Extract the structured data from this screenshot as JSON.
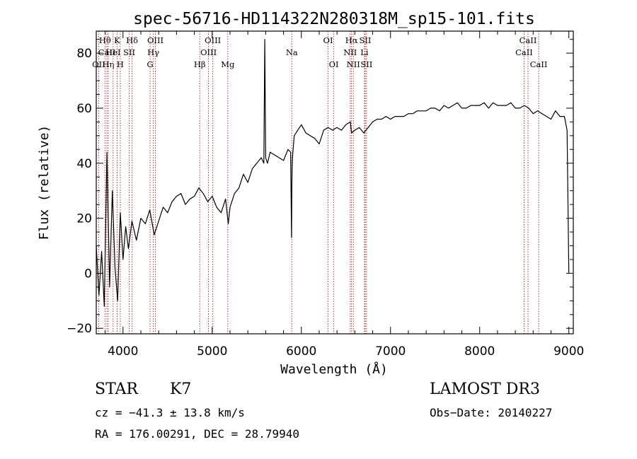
{
  "chart_data": {
    "type": "line",
    "title": "spec-56716-HD114322N280318M_sp15-101.fits",
    "xlabel": "Wavelength (Å)",
    "ylabel": "Flux (relative)",
    "xlim": [
      3700,
      9050
    ],
    "ylim": [
      -22,
      88
    ],
    "xticks": [
      4000,
      5000,
      6000,
      7000,
      8000,
      9000
    ],
    "xtick_labels": [
      "4000",
      "5000",
      "6000",
      "7000",
      "8000",
      "9000"
    ],
    "yticks": [
      -20,
      0,
      20,
      40,
      60,
      80
    ],
    "ytick_labels": [
      "−20",
      "0",
      "20",
      "40",
      "60",
      "80"
    ],
    "series": [
      {
        "name": "flux",
        "x": [
          3700,
          3730,
          3760,
          3790,
          3820,
          3850,
          3880,
          3910,
          3940,
          3970,
          4000,
          4030,
          4060,
          4100,
          4150,
          4200,
          4250,
          4300,
          4350,
          4400,
          4450,
          4500,
          4550,
          4600,
          4650,
          4700,
          4750,
          4800,
          4850,
          4900,
          4950,
          5000,
          5050,
          5100,
          5150,
          5180,
          5200,
          5250,
          5300,
          5350,
          5400,
          5450,
          5500,
          5550,
          5580,
          5590,
          5600,
          5620,
          5650,
          5700,
          5750,
          5800,
          5850,
          5880,
          5890,
          5893,
          5896,
          5900,
          5920,
          5960,
          6000,
          6050,
          6100,
          6150,
          6200,
          6250,
          6300,
          6350,
          6400,
          6450,
          6500,
          6550,
          6563,
          6600,
          6650,
          6700,
          6750,
          6800,
          6850,
          6900,
          6950,
          7000,
          7050,
          7100,
          7150,
          7200,
          7250,
          7300,
          7350,
          7400,
          7450,
          7500,
          7550,
          7600,
          7650,
          7700,
          7750,
          7800,
          7850,
          7900,
          7950,
          8000,
          8050,
          8100,
          8150,
          8200,
          8250,
          8300,
          8350,
          8400,
          8450,
          8500,
          8550,
          8600,
          8650,
          8700,
          8750,
          8800,
          8850,
          8900,
          8950,
          8980,
          9000
        ],
        "y": [
          10,
          -8,
          8,
          -12,
          44,
          -5,
          30,
          2,
          -10,
          22,
          5,
          17,
          9,
          19,
          12,
          20,
          18,
          23,
          14,
          19,
          24,
          22,
          26,
          28,
          29,
          25,
          27,
          28,
          31,
          29,
          26,
          28,
          24,
          22,
          27,
          18,
          24,
          29,
          31,
          36,
          33,
          38,
          40,
          42,
          40,
          85,
          42,
          40,
          44,
          43,
          42,
          41,
          45,
          44,
          13,
          30,
          38,
          42,
          50,
          52,
          54,
          51,
          50,
          49,
          47,
          52,
          53,
          52,
          53,
          52,
          54,
          55,
          51,
          52,
          53,
          51,
          53,
          55,
          56,
          56,
          57,
          56,
          57,
          57,
          57,
          58,
          58,
          59,
          59,
          59,
          60,
          60,
          59,
          61,
          60,
          61,
          62,
          60,
          60,
          61,
          61,
          61,
          62,
          60,
          62,
          61,
          61,
          61,
          62,
          60,
          60,
          61,
          60,
          58,
          59,
          58,
          57,
          56,
          59,
          57,
          57,
          52,
          0
        ]
      }
    ],
    "spectral_lines": [
      {
        "name": "Hθ",
        "wavelength": 3798,
        "row": 1
      },
      {
        "name": "CaII",
        "wavelength": 3820,
        "row": 2
      },
      {
        "name": "OII",
        "wavelength": 3727,
        "row": 3
      },
      {
        "name": "Hη",
        "wavelength": 3835,
        "row": 3
      },
      {
        "name": "K",
        "wavelength": 3934,
        "row": 1
      },
      {
        "name": "HeI",
        "wavelength": 3889,
        "row": 2
      },
      {
        "name": "H",
        "wavelength": 3969,
        "row": 3
      },
      {
        "name": "Hδ",
        "wavelength": 4102,
        "row": 1
      },
      {
        "name": "SII",
        "wavelength": 4070,
        "row": 2
      },
      {
        "name": "OIII",
        "wavelength": 4363,
        "row": 1
      },
      {
        "name": "Hγ",
        "wavelength": 4340,
        "row": 2
      },
      {
        "name": "G",
        "wavelength": 4304,
        "row": 3
      },
      {
        "name": "OIII",
        "wavelength": 5007,
        "row": 1
      },
      {
        "name": "OIII",
        "wavelength": 4959,
        "row": 2
      },
      {
        "name": "Hβ",
        "wavelength": 4861,
        "row": 3
      },
      {
        "name": "Mg",
        "wavelength": 5175,
        "row": 3
      },
      {
        "name": "Na",
        "wavelength": 5893,
        "row": 2
      },
      {
        "name": "OI",
        "wavelength": 6300,
        "row": 1
      },
      {
        "name": "OI",
        "wavelength": 6364,
        "row": 3
      },
      {
        "name": "Hα",
        "wavelength": 6563,
        "row": 1
      },
      {
        "name": "SII",
        "wavelength": 6716,
        "row": 1
      },
      {
        "name": "NII",
        "wavelength": 6548,
        "row": 2
      },
      {
        "name": "Li",
        "wavelength": 6708,
        "row": 2
      },
      {
        "name": "NII",
        "wavelength": 6583,
        "row": 3
      },
      {
        "name": "SII",
        "wavelength": 6731,
        "row": 3
      },
      {
        "name": "CaII",
        "wavelength": 8542,
        "row": 1
      },
      {
        "name": "CaII",
        "wavelength": 8498,
        "row": 2
      },
      {
        "name": "CaII",
        "wavelength": 8662,
        "row": 3
      }
    ]
  },
  "info": {
    "object_type": "STAR",
    "subclass": "K7",
    "survey": "LAMOST DR3",
    "redshift_text": "cz = −41.3 ± 13.8 km/s",
    "obs_date_text": "Obs−Date: 20140227",
    "coords_text": "RA = 176.00291, DEC =  28.79940"
  },
  "colors": {
    "flux_line": "#000000",
    "marker_line": "#b22222",
    "axes": "#000000"
  }
}
